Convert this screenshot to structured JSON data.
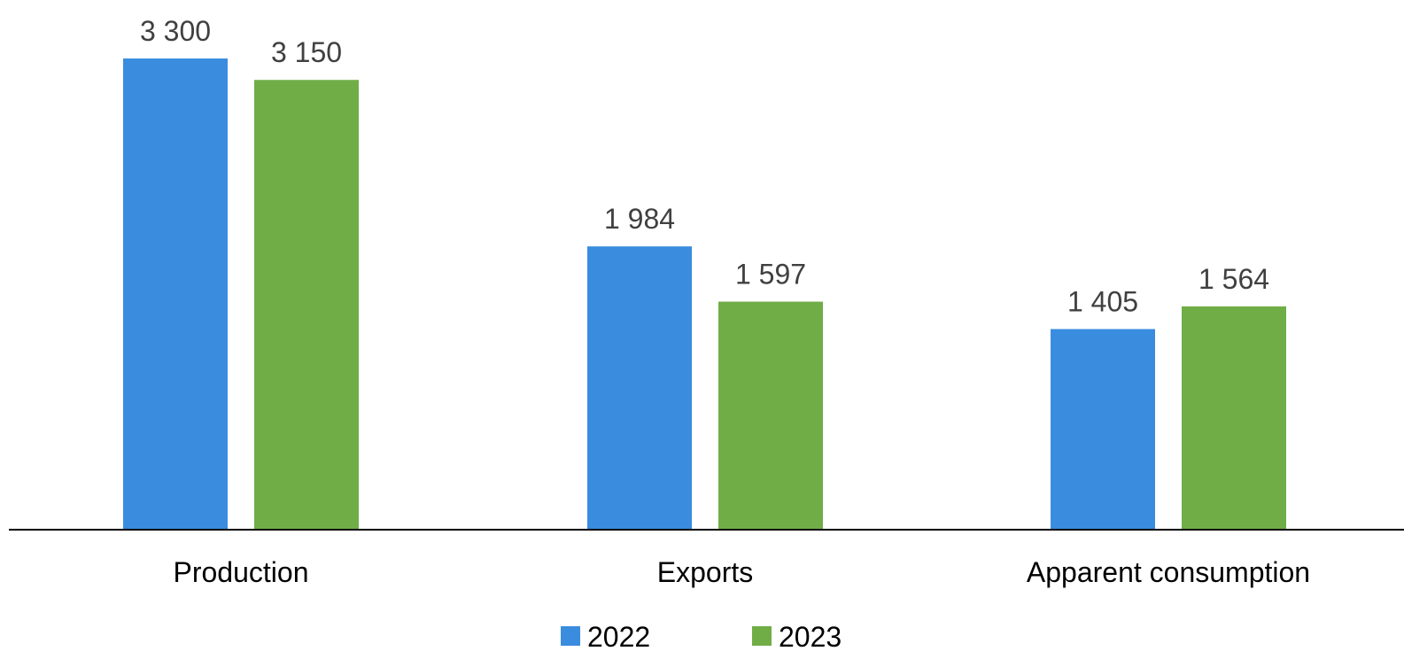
{
  "chart_data": {
    "type": "bar",
    "title": "",
    "xlabel": "",
    "ylabel": "",
    "categories": [
      "Production",
      "Exports",
      "Apparent consumption"
    ],
    "series": [
      {
        "name": "2022",
        "color": "#3a8cde",
        "values": [
          3300,
          1984,
          1405
        ],
        "labels": [
          "3 300",
          "1 984",
          "1 405"
        ]
      },
      {
        "name": "2023",
        "color": "#70ad47",
        "values": [
          3150,
          1597,
          1564
        ],
        "labels": [
          "3 150",
          "1 597",
          "1 564"
        ]
      }
    ],
    "ylim": [
      0,
      3660
    ],
    "grid": false,
    "legend_position": "bottom",
    "axis_color": "#000000"
  }
}
